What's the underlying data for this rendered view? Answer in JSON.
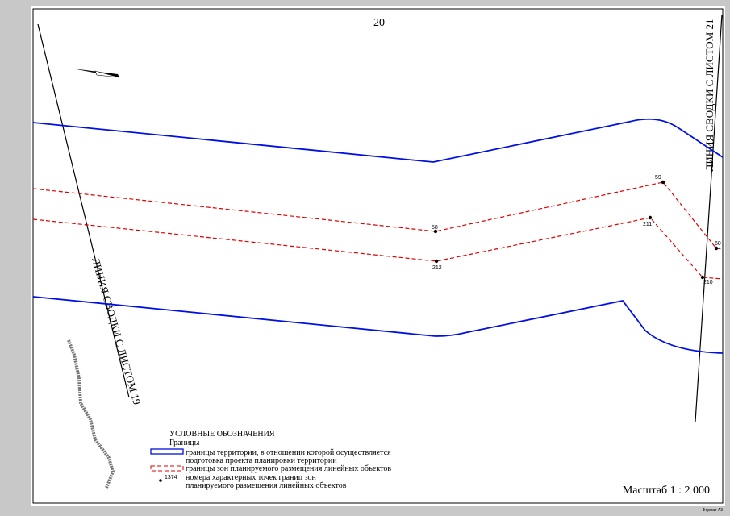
{
  "sheet_number": "20",
  "match_lines": [
    "ЛИНИЯ СВОДКИ С ЛИСТОМ 21",
    "ЛИНИЯ СВОДКИ С ЛИСТОМ 19"
  ],
  "points": [
    "59",
    "58",
    "211",
    "212",
    "60",
    "210"
  ],
  "legend": {
    "title": "УСЛОВНЫЕ ОБОЗНАЧЕНИЯ",
    "subtitle": "Границы",
    "items": [
      {
        "lines": [
          "границы территории, в отношении которой осуществляется",
          "подготовка проекта планировки территории"
        ]
      },
      {
        "lines": [
          "границы зон планируемого размещения линейных объектов"
        ]
      },
      {
        "sample": "1374",
        "lines": [
          "номера характерных точек границ зон",
          "планируемого размещения линейных объектов"
        ]
      }
    ]
  },
  "scale": "Масштаб 1 : 2 000",
  "format": "Формат А3"
}
